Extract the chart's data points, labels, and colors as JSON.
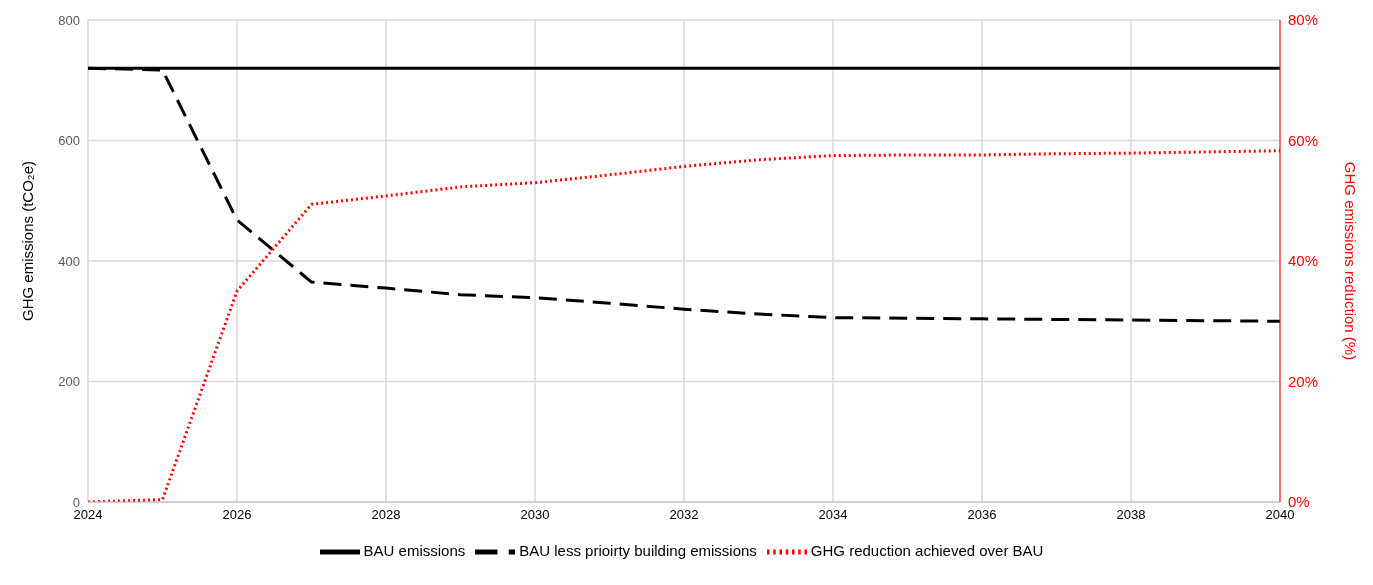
{
  "chart_data": {
    "type": "line",
    "x": [
      2024,
      2025,
      2026,
      2027,
      2028,
      2029,
      2030,
      2031,
      2032,
      2033,
      2034,
      2035,
      2036,
      2037,
      2038,
      2039,
      2040
    ],
    "series": [
      {
        "name": "BAU emissions",
        "color": "#000000",
        "line_style": "solid",
        "values": [
          720,
          720,
          720,
          720,
          720,
          720,
          720,
          720,
          720,
          720,
          720,
          720,
          720,
          720,
          720,
          720,
          720
        ]
      },
      {
        "name": "BAU less prioirty building emissions",
        "color": "#000000",
        "line_style": "dashed",
        "values": [
          720,
          717,
          468,
          365,
          355,
          344,
          339,
          330,
          320,
          312,
          306,
          305,
          304,
          303,
          302,
          301,
          300
        ]
      },
      {
        "name": "GHG reduction achieved over BAU",
        "color": "#ff0000",
        "line_style": "dotted",
        "axis": "y2",
        "values": [
          0,
          0.4,
          35,
          49.4,
          50.8,
          52.3,
          53,
          54.3,
          55.7,
          56.8,
          57.5,
          57.6,
          57.6,
          57.8,
          57.9,
          58.1,
          58.3
        ]
      }
    ],
    "xlim": [
      2024,
      2040
    ],
    "xticks": [
      2024,
      2026,
      2028,
      2030,
      2032,
      2034,
      2036,
      2038,
      2040
    ],
    "ylim": [
      0,
      800
    ],
    "yticks": [
      0,
      200,
      400,
      600,
      800
    ],
    "y2lim": [
      0,
      80
    ],
    "y2ticks": [
      {
        "value": 0,
        "label": "0%"
      },
      {
        "value": 20,
        "label": "20%"
      },
      {
        "value": 40,
        "label": "40%"
      },
      {
        "value": 60,
        "label": "60%"
      },
      {
        "value": 80,
        "label": "80%"
      }
    ],
    "ylabel": "GHG emissions (tCO₂e)",
    "y2label": "GHG emissions reduction (%)",
    "grid": true,
    "legend": "bottom",
    "marker": "none"
  }
}
